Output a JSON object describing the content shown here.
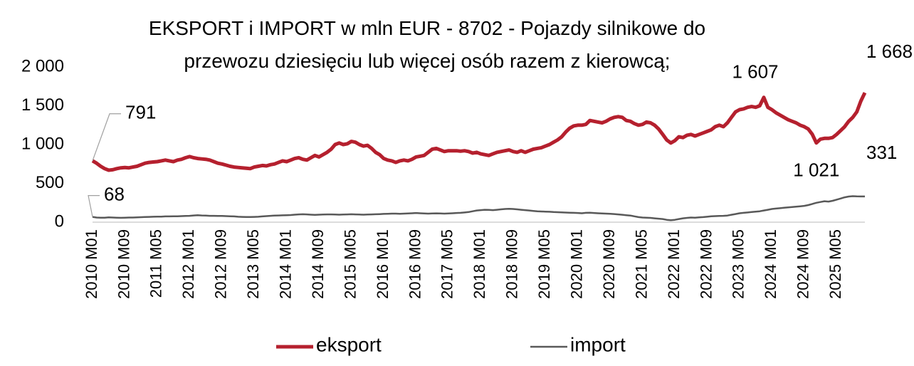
{
  "chart_data": {
    "type": "line",
    "title": "EKSPORT i IMPORT w mln EUR - 8702 - Pojazdy silnikowe do przewozu dziesięciu lub więcej osób razem z kierowcą;",
    "categories": [
      "2010 M01",
      null,
      null,
      null,
      null,
      null,
      null,
      null,
      "2010 M09",
      null,
      null,
      null,
      null,
      null,
      null,
      null,
      "2011 M05",
      null,
      null,
      null,
      null,
      null,
      null,
      null,
      "2012 M01",
      null,
      null,
      null,
      null,
      null,
      null,
      null,
      "2012 M09",
      null,
      null,
      null,
      null,
      null,
      null,
      null,
      "2013 M05",
      null,
      null,
      null,
      null,
      null,
      null,
      null,
      "2014 M01",
      null,
      null,
      null,
      null,
      null,
      null,
      null,
      "2014 M09",
      null,
      null,
      null,
      null,
      null,
      null,
      null,
      "2015 M05",
      null,
      null,
      null,
      null,
      null,
      null,
      null,
      "2016 M01",
      null,
      null,
      null,
      null,
      null,
      null,
      null,
      "2016 M09",
      null,
      null,
      null,
      null,
      null,
      null,
      null,
      "2017 M05",
      null,
      null,
      null,
      null,
      null,
      null,
      null,
      "2018 M01",
      null,
      null,
      null,
      null,
      null,
      null,
      null,
      "2018 M09",
      null,
      null,
      null,
      null,
      null,
      null,
      null,
      "2019 M05",
      null,
      null,
      null,
      null,
      null,
      null,
      null,
      "2020 M01",
      null,
      null,
      null,
      null,
      null,
      null,
      null,
      "2020 M09",
      null,
      null,
      null,
      null,
      null,
      null,
      null,
      "2021 M05",
      null,
      null,
      null,
      null,
      null,
      null,
      null,
      "2022 M01",
      null,
      null,
      null,
      null,
      null,
      null,
      null,
      "2022 M09",
      null,
      null,
      null,
      null,
      null,
      null,
      null,
      "2023 M05",
      null,
      null,
      null,
      null,
      null,
      null,
      null,
      "2024 M01",
      null,
      null,
      null,
      null,
      null,
      null,
      null,
      "2024 M09",
      null,
      null,
      null,
      null,
      null,
      null,
      null,
      "2025 M05",
      null,
      null,
      null,
      null,
      null,
      null,
      null
    ],
    "series": [
      {
        "name": "eksport",
        "color": "#b5202e",
        "values": [
          791,
          760,
          720,
          690,
          670,
          675,
          690,
          700,
          705,
          700,
          710,
          720,
          740,
          760,
          770,
          775,
          780,
          790,
          800,
          790,
          780,
          800,
          810,
          830,
          845,
          830,
          820,
          815,
          810,
          800,
          780,
          760,
          750,
          735,
          720,
          710,
          705,
          700,
          695,
          690,
          710,
          720,
          730,
          725,
          740,
          750,
          770,
          790,
          780,
          800,
          820,
          830,
          810,
          800,
          830,
          860,
          840,
          870,
          900,
          940,
          1000,
          1020,
          1000,
          1010,
          1040,
          1030,
          1000,
          980,
          990,
          950,
          900,
          870,
          820,
          800,
          790,
          770,
          790,
          800,
          790,
          810,
          840,
          850,
          860,
          900,
          940,
          950,
          930,
          910,
          920,
          920,
          920,
          915,
          920,
          910,
          890,
          900,
          880,
          870,
          860,
          880,
          900,
          910,
          920,
          930,
          910,
          900,
          920,
          900,
          920,
          940,
          950,
          960,
          980,
          1000,
          1030,
          1060,
          1100,
          1160,
          1210,
          1240,
          1250,
          1250,
          1260,
          1310,
          1300,
          1290,
          1280,
          1300,
          1330,
          1350,
          1360,
          1350,
          1310,
          1300,
          1270,
          1250,
          1260,
          1290,
          1280,
          1250,
          1200,
          1130,
          1060,
          1020,
          1050,
          1100,
          1090,
          1120,
          1130,
          1110,
          1130,
          1150,
          1170,
          1190,
          1230,
          1250,
          1230,
          1280,
          1350,
          1420,
          1450,
          1460,
          1480,
          1490,
          1480,
          1500,
          1607,
          1480,
          1450,
          1410,
          1380,
          1350,
          1320,
          1300,
          1280,
          1250,
          1230,
          1200,
          1130,
          1021,
          1070,
          1080,
          1080,
          1090,
          1130,
          1180,
          1230,
          1300,
          1350,
          1420,
          1560,
          1668
        ],
        "value_labels": [
          "791",
          null,
          null,
          null,
          null,
          null,
          null,
          null,
          null,
          null,
          null,
          null,
          null,
          null,
          null,
          null,
          null,
          null,
          null,
          null,
          null,
          null,
          null,
          null,
          null,
          null,
          null,
          null,
          null,
          null,
          null,
          null,
          null,
          null,
          null,
          null,
          null,
          null,
          null,
          null,
          null,
          null,
          null,
          null,
          null,
          null,
          null,
          null,
          null,
          null,
          null,
          null,
          null,
          null,
          null,
          null,
          null,
          null,
          null,
          null,
          null,
          null,
          null,
          null,
          null,
          null,
          null,
          null,
          null,
          null,
          null,
          null,
          null,
          null,
          null,
          null,
          null,
          null,
          null,
          null,
          null,
          null,
          null,
          null,
          null,
          null,
          null,
          null,
          null,
          null,
          null,
          null,
          null,
          null,
          null,
          null,
          null,
          null,
          null,
          null,
          null,
          null,
          null,
          null,
          null,
          null,
          null,
          null,
          null,
          null,
          null,
          null,
          null,
          null,
          null,
          null,
          null,
          null,
          null,
          null,
          null,
          null,
          null,
          null,
          null,
          null,
          null,
          null,
          null,
          null,
          null,
          null,
          null,
          null,
          null,
          null,
          null,
          null,
          null,
          null,
          null,
          null,
          null,
          null,
          null,
          null,
          null,
          null,
          null,
          null,
          null,
          null,
          null,
          null,
          null,
          null,
          null,
          null,
          null,
          null,
          null,
          null,
          null,
          null,
          null,
          null,
          "1 607",
          null,
          null,
          null,
          null,
          null,
          null,
          null,
          null,
          null,
          null,
          null,
          null,
          "1 021",
          null,
          null,
          null,
          null,
          null,
          null,
          null,
          null,
          null,
          null,
          null,
          "1 668"
        ]
      },
      {
        "name": "import",
        "color": "#595959",
        "values": [
          68,
          60,
          58,
          58,
          62,
          60,
          58,
          56,
          58,
          60,
          60,
          62,
          64,
          66,
          68,
          70,
          72,
          72,
          74,
          74,
          76,
          76,
          78,
          80,
          82,
          86,
          90,
          86,
          84,
          82,
          82,
          80,
          80,
          78,
          76,
          74,
          70,
          68,
          66,
          66,
          68,
          70,
          74,
          78,
          82,
          84,
          86,
          88,
          90,
          92,
          96,
          100,
          102,
          100,
          96,
          94,
          96,
          98,
          100,
          100,
          98,
          96,
          98,
          100,
          102,
          100,
          98,
          96,
          98,
          100,
          102,
          104,
          106,
          108,
          110,
          110,
          108,
          110,
          112,
          115,
          118,
          115,
          112,
          110,
          112,
          114,
          112,
          110,
          112,
          115,
          118,
          120,
          125,
          130,
          140,
          150,
          155,
          160,
          158,
          155,
          160,
          165,
          170,
          172,
          170,
          165,
          160,
          155,
          150,
          145,
          140,
          138,
          136,
          134,
          130,
          128,
          126,
          124,
          122,
          120,
          118,
          115,
          120,
          122,
          118,
          115,
          112,
          110,
          108,
          105,
          100,
          95,
          90,
          85,
          75,
          65,
          60,
          58,
          55,
          50,
          45,
          40,
          30,
          25,
          30,
          40,
          50,
          55,
          60,
          58,
          62,
          65,
          70,
          75,
          78,
          80,
          82,
          85,
          95,
          105,
          115,
          120,
          125,
          130,
          135,
          140,
          150,
          160,
          170,
          175,
          180,
          185,
          190,
          195,
          200,
          205,
          210,
          220,
          235,
          250,
          260,
          270,
          265,
          275,
          290,
          305,
          320,
          330,
          335,
          332,
          331,
          331
        ],
        "value_labels": [
          "68",
          null,
          null,
          null,
          null,
          null,
          null,
          null,
          null,
          null,
          null,
          null,
          null,
          null,
          null,
          null,
          null,
          null,
          null,
          null,
          null,
          null,
          null,
          null,
          null,
          null,
          null,
          null,
          null,
          null,
          null,
          null,
          null,
          null,
          null,
          null,
          null,
          null,
          null,
          null,
          null,
          null,
          null,
          null,
          null,
          null,
          null,
          null,
          null,
          null,
          null,
          null,
          null,
          null,
          null,
          null,
          null,
          null,
          null,
          null,
          null,
          null,
          null,
          null,
          null,
          null,
          null,
          null,
          null,
          null,
          null,
          null,
          null,
          null,
          null,
          null,
          null,
          null,
          null,
          null,
          null,
          null,
          null,
          null,
          null,
          null,
          null,
          null,
          null,
          null,
          null,
          null,
          null,
          null,
          null,
          null,
          null,
          null,
          null,
          null,
          null,
          null,
          null,
          null,
          null,
          null,
          null,
          null,
          null,
          null,
          null,
          null,
          null,
          null,
          null,
          null,
          null,
          null,
          null,
          null,
          null,
          null,
          null,
          null,
          null,
          null,
          null,
          null,
          null,
          null,
          null,
          null,
          null,
          null,
          null,
          null,
          null,
          null,
          null,
          null,
          null,
          null,
          null,
          null,
          null,
          null,
          null,
          null,
          null,
          null,
          null,
          null,
          null,
          null,
          null,
          null,
          null,
          null,
          null,
          null,
          null,
          null,
          null,
          null,
          null,
          null,
          null,
          null,
          null,
          null,
          null,
          null,
          null,
          null,
          null,
          null,
          null,
          null,
          null,
          null,
          null,
          null,
          null,
          null,
          null,
          null,
          null,
          null,
          null,
          null,
          null,
          "331"
        ]
      }
    ],
    "ylim": [
      0,
      2000
    ],
    "yticks": [
      0,
      500,
      {
        "value": 1000,
        "label": "1 000"
      },
      {
        "value": 1500,
        "label": "1 500"
      },
      {
        "value": 2000,
        "label": "2 000"
      }
    ],
    "legend": "bottom"
  }
}
